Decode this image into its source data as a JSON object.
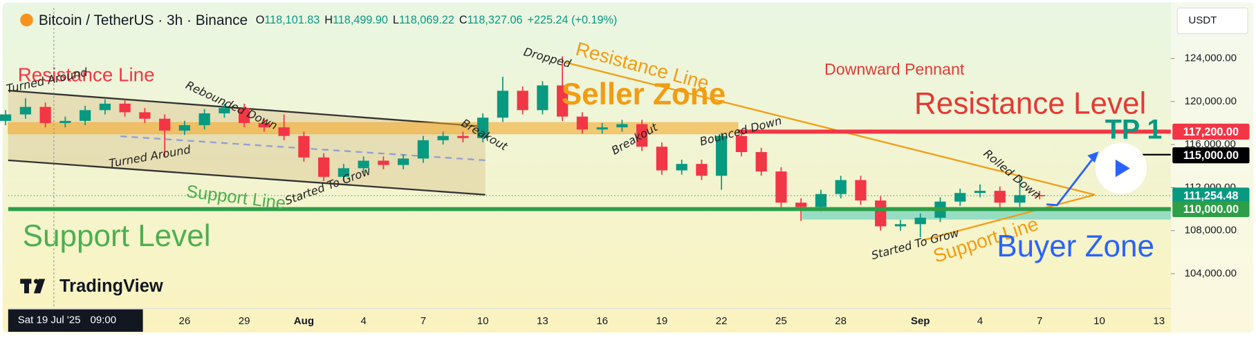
{
  "header": {
    "symbol": "Bitcoin / TetherUS · 3h · Binance",
    "ohlc": [
      {
        "label": "O",
        "value": "118,101.83"
      },
      {
        "label": "H",
        "value": "118,499.90"
      },
      {
        "label": "L",
        "value": "118,069.22"
      },
      {
        "label": "C",
        "value": "118,327.06"
      }
    ],
    "change": "+225.24 (+0.19%)",
    "currency": "USDT",
    "crosshair_date": "Sat 19 Jul '25",
    "crosshair_time": "09:00",
    "branding": "TradingView"
  },
  "chart_data": {
    "type": "candlestick",
    "up_color": "#089981",
    "down_color": "#f23645",
    "categories": [
      null,
      null,
      null,
      null,
      null,
      null,
      null,
      null,
      null,
      "26",
      null,
      null,
      "29",
      null,
      null,
      "Aug",
      null,
      null,
      "4",
      null,
      null,
      "7",
      null,
      null,
      "10",
      null,
      null,
      "13",
      null,
      null,
      "16",
      null,
      null,
      "19",
      null,
      null,
      "22",
      null,
      null,
      "25",
      null,
      null,
      "28",
      null,
      null,
      null,
      "Sep",
      null,
      null,
      "4",
      null,
      null,
      "7",
      null,
      null,
      "10",
      null,
      null,
      "13"
    ],
    "open": [
      118200,
      118800,
      119500,
      118000,
      118200,
      119200,
      119800,
      119000,
      118400,
      117300,
      117800,
      118900,
      119400,
      118000,
      117600,
      116800,
      114800,
      113000,
      113800,
      114500,
      114100,
      114700,
      116400,
      116800,
      116600,
      118500,
      121000,
      119200,
      121500,
      118600,
      117400,
      117600,
      117900,
      115800,
      113600,
      114200,
      113100,
      116800,
      115300,
      113500,
      110600,
      110200,
      111400,
      112700,
      110800,
      108400,
      108600,
      109200,
      110700,
      111500,
      111700,
      110600,
      111300,
      null,
      null,
      null,
      null,
      null,
      null
    ],
    "high": [
      119200,
      120300,
      119900,
      118600,
      119600,
      120200,
      120200,
      119400,
      118800,
      118200,
      119300,
      119800,
      119800,
      118400,
      118800,
      117200,
      115200,
      114200,
      114900,
      114900,
      115100,
      116800,
      117200,
      117200,
      118900,
      122300,
      121400,
      121900,
      124200,
      119000,
      118000,
      118300,
      118300,
      116200,
      114600,
      114600,
      117100,
      117200,
      115700,
      113900,
      111000,
      111800,
      113100,
      113100,
      111200,
      109000,
      109600,
      111100,
      111900,
      112300,
      112100,
      113000,
      111700,
      null,
      null,
      null,
      null,
      null,
      null
    ],
    "low": [
      117800,
      118400,
      117600,
      117600,
      117800,
      118800,
      118600,
      118000,
      114800,
      116900,
      117400,
      118500,
      117600,
      117200,
      116400,
      114400,
      112600,
      112600,
      113400,
      113700,
      113700,
      114300,
      116000,
      116200,
      116200,
      118100,
      118800,
      118800,
      118200,
      117000,
      117000,
      117200,
      115400,
      113200,
      113200,
      112700,
      111800,
      114900,
      113100,
      110200,
      108900,
      109800,
      111000,
      110400,
      108000,
      108000,
      107400,
      108800,
      110300,
      111100,
      110200,
      110200,
      110900,
      null,
      null,
      null,
      null,
      null,
      null
    ],
    "close": [
      118800,
      119500,
      118000,
      118200,
      119200,
      119800,
      119000,
      118400,
      117300,
      117800,
      118900,
      119400,
      118000,
      117600,
      116800,
      114800,
      113000,
      113800,
      114500,
      114100,
      114700,
      116400,
      116800,
      116600,
      118500,
      121000,
      119200,
      121500,
      118600,
      117400,
      117600,
      117900,
      115800,
      113600,
      114200,
      113100,
      116800,
      115300,
      113500,
      110600,
      110200,
      111400,
      112700,
      110800,
      108400,
      108600,
      109200,
      110700,
      111500,
      111700,
      110600,
      111300,
      111254.48,
      null,
      null,
      null,
      null,
      null,
      null
    ],
    "ylim": [
      100760,
      128690
    ],
    "yticks": [
      {
        "value": 104000,
        "label": "104,000.00"
      },
      {
        "value": 108000,
        "label": "108,000.00"
      },
      {
        "value": 112000,
        "label": "112,000.00"
      },
      {
        "value": 116000,
        "label": "116,000.00"
      },
      {
        "value": 120000,
        "label": "120,000.00"
      },
      {
        "value": 124000,
        "label": "124,000.00"
      }
    ],
    "price_labels": [
      {
        "value": 117200,
        "label": "117,200.00",
        "color": "#f23645"
      },
      {
        "value": 115000,
        "label": "115,000.00",
        "color": "#000000"
      },
      {
        "value": 111254.48,
        "label": "111,254.48",
        "color": "#089981"
      },
      {
        "value": 110000,
        "label": "110,000.00",
        "color": "#2e9e48"
      }
    ],
    "annotations": [
      "Resistance Line",
      "Turned Around",
      "Rebounded Down",
      "Turned Around",
      "Support Line",
      "Started To Grow",
      "Breakout",
      "Dropped",
      "Resistance Line",
      "Seller Zone",
      "Breakout",
      "Bounced Down",
      "Downward Pennant",
      "Resistance Level",
      "TP 1",
      "Rolled Down",
      "Started To Grow",
      "Support Line",
      "Buyer Zone",
      "Support Level"
    ]
  }
}
